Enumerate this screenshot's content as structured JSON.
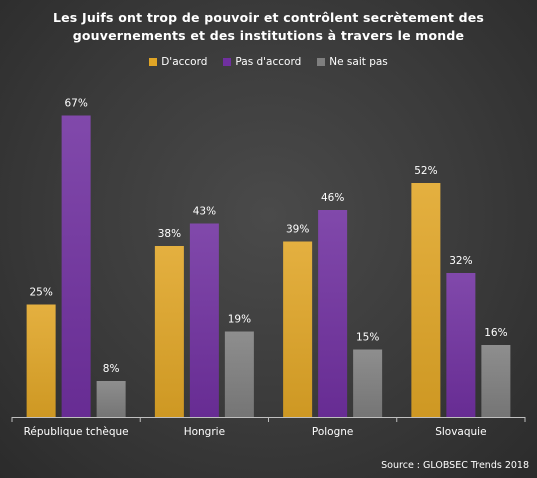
{
  "chart_data": {
    "type": "bar",
    "title_lines": [
      "Les Juifs ont trop de pouvoir et contrôlent secrètement des",
      "gouvernements et des institutions à travers le monde"
    ],
    "categories": [
      "République tchèque",
      "Hongrie",
      "Pologne",
      "Slovaquie"
    ],
    "series": [
      {
        "name": "D'accord",
        "color": "#e0a526",
        "values": [
          25,
          38,
          39,
          52
        ],
        "labels": [
          "25%",
          "38%",
          "39%",
          "52%"
        ]
      },
      {
        "name": "Pas d'accord",
        "color": "#7030a0",
        "values": [
          67,
          43,
          46,
          32
        ],
        "labels": [
          "67%",
          "43%",
          "46%",
          "32%"
        ]
      },
      {
        "name": "Ne sait pas",
        "color": "#7f7f7f",
        "values": [
          8,
          19,
          15,
          16
        ],
        "labels": [
          "8%",
          "19%",
          "15%",
          "16%"
        ]
      }
    ],
    "ylim": [
      0,
      70
    ],
    "legend_position": "top",
    "grid": false,
    "source": "Source : GLOBSEC Trends 2018"
  }
}
